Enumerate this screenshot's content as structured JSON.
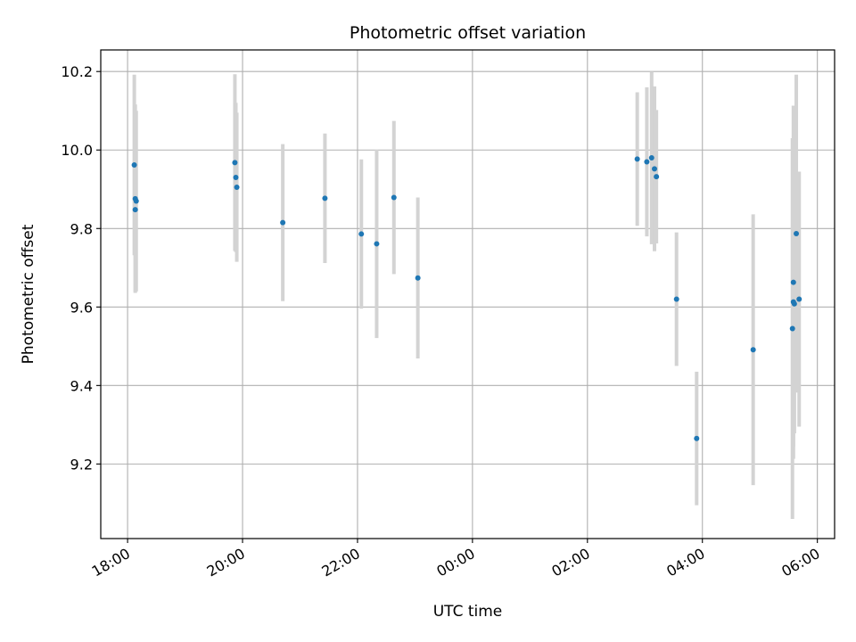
{
  "chart_data": {
    "type": "scatter",
    "title": "Photometric offset variation",
    "xlabel": "UTC time",
    "ylabel": "Photometric offset",
    "x_axis_kind": "datetime",
    "xlim": [
      "17:32",
      "06:18"
    ],
    "ylim": [
      9.01,
      10.255
    ],
    "x_ticks": [
      "18:00",
      "20:00",
      "22:00",
      "00:00",
      "02:00",
      "04:00",
      "06:00"
    ],
    "y_ticks": [
      9.2,
      9.4,
      9.6,
      9.8,
      10.0,
      10.2
    ],
    "y_tick_labels": [
      "9.2",
      "9.4",
      "9.6",
      "9.8",
      "10.0",
      "10.2"
    ],
    "grid": true,
    "legend": "none",
    "marker_color": "#1f77b4",
    "errorbar_color": "#d3d3d3",
    "points": [
      {
        "t": "18:07",
        "y": 9.962,
        "err": 0.23
      },
      {
        "t": "18:08",
        "y": 9.876,
        "err": 0.24
      },
      {
        "t": "18:08",
        "y": 9.848,
        "err": 0.21
      },
      {
        "t": "18:09",
        "y": 9.87,
        "err": 0.23
      },
      {
        "t": "19:52",
        "y": 9.968,
        "err": 0.225
      },
      {
        "t": "19:53",
        "y": 9.93,
        "err": 0.19
      },
      {
        "t": "19:54",
        "y": 9.905,
        "err": 0.19
      },
      {
        "t": "20:42",
        "y": 9.815,
        "err": 0.2
      },
      {
        "t": "21:26",
        "y": 9.877,
        "err": 0.165
      },
      {
        "t": "22:04",
        "y": 9.786,
        "err": 0.19
      },
      {
        "t": "22:20",
        "y": 9.761,
        "err": 0.24
      },
      {
        "t": "22:38",
        "y": 9.879,
        "err": 0.195
      },
      {
        "t": "23:03",
        "y": 9.674,
        "err": 0.205
      },
      {
        "t": "02:52",
        "y": 9.977,
        "err": 0.17
      },
      {
        "t": "03:02",
        "y": 9.97,
        "err": 0.19
      },
      {
        "t": "03:07",
        "y": 9.98,
        "err": 0.22
      },
      {
        "t": "03:10",
        "y": 9.952,
        "err": 0.21
      },
      {
        "t": "03:12",
        "y": 9.932,
        "err": 0.17
      },
      {
        "t": "03:33",
        "y": 9.62,
        "err": 0.17
      },
      {
        "t": "03:54",
        "y": 9.265,
        "err": 0.17
      },
      {
        "t": "04:53",
        "y": 9.491,
        "err": 0.345
      },
      {
        "t": "05:34",
        "y": 9.545,
        "err": 0.485
      },
      {
        "t": "05:35",
        "y": 9.663,
        "err": 0.45
      },
      {
        "t": "05:35",
        "y": 9.613,
        "err": 0.37
      },
      {
        "t": "05:36",
        "y": 9.608,
        "err": 0.33
      },
      {
        "t": "05:38",
        "y": 9.787,
        "err": 0.405
      },
      {
        "t": "05:41",
        "y": 9.62,
        "err": 0.325
      }
    ]
  }
}
